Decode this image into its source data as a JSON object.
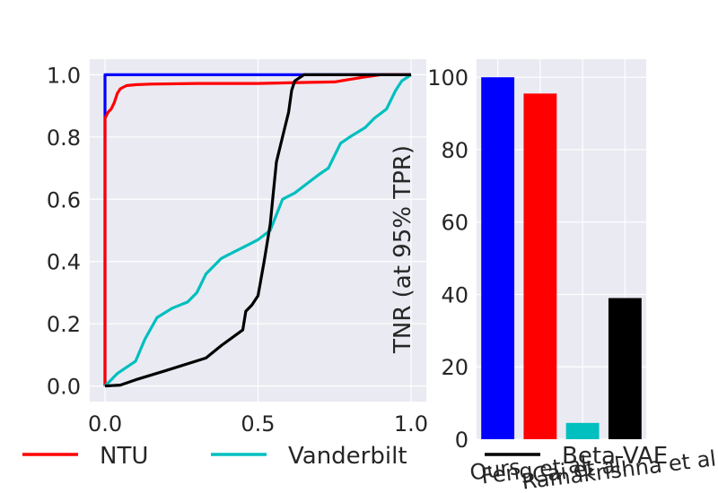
{
  "chart_data": [
    {
      "type": "line",
      "xlim": [
        -0.05,
        1.05
      ],
      "ylim": [
        -0.05,
        1.05
      ],
      "xticks": [
        "0.0",
        "0.5",
        "1.0"
      ],
      "xtick_values": [
        0.0,
        0.5,
        1.0
      ],
      "yticks": [
        "0.0",
        "0.2",
        "0.4",
        "0.6",
        "0.8",
        "1.0"
      ],
      "ytick_values": [
        0.0,
        0.2,
        0.4,
        0.6,
        0.8,
        1.0
      ],
      "grid": true,
      "legend_position": "bottom-left",
      "series": [
        {
          "color": "#0000ff",
          "points": [
            [
              0,
              0
            ],
            [
              0,
              1
            ],
            [
              0.5,
              1
            ],
            [
              1,
              1
            ]
          ]
        },
        {
          "name": "NTU",
          "color": "#ff0000",
          "points": [
            [
              0,
              0
            ],
            [
              0,
              0.86
            ],
            [
              0.01,
              0.88
            ],
            [
              0.02,
              0.89
            ],
            [
              0.03,
              0.91
            ],
            [
              0.04,
              0.94
            ],
            [
              0.05,
              0.955
            ],
            [
              0.07,
              0.965
            ],
            [
              0.1,
              0.968
            ],
            [
              0.15,
              0.97
            ],
            [
              0.3,
              0.972
            ],
            [
              0.5,
              0.972
            ],
            [
              0.65,
              0.975
            ],
            [
              0.75,
              0.977
            ],
            [
              0.8,
              0.985
            ],
            [
              0.85,
              0.993
            ],
            [
              0.9,
              1
            ],
            [
              1,
              1
            ]
          ]
        },
        {
          "name": "Vanderbilt",
          "color": "#00bfbf",
          "points": [
            [
              0,
              0
            ],
            [
              0.02,
              0.02
            ],
            [
              0.04,
              0.04
            ],
            [
              0.07,
              0.06
            ],
            [
              0.1,
              0.08
            ],
            [
              0.13,
              0.15
            ],
            [
              0.17,
              0.22
            ],
            [
              0.22,
              0.25
            ],
            [
              0.27,
              0.27
            ],
            [
              0.3,
              0.3
            ],
            [
              0.33,
              0.36
            ],
            [
              0.38,
              0.41
            ],
            [
              0.42,
              0.43
            ],
            [
              0.46,
              0.45
            ],
            [
              0.5,
              0.47
            ],
            [
              0.54,
              0.5
            ],
            [
              0.58,
              0.6
            ],
            [
              0.62,
              0.62
            ],
            [
              0.66,
              0.65
            ],
            [
              0.7,
              0.68
            ],
            [
              0.73,
              0.7
            ],
            [
              0.77,
              0.78
            ],
            [
              0.8,
              0.8
            ],
            [
              0.85,
              0.83
            ],
            [
              0.88,
              0.86
            ],
            [
              0.92,
              0.89
            ],
            [
              0.95,
              0.95
            ],
            [
              0.97,
              0.98
            ],
            [
              1,
              1
            ]
          ]
        },
        {
          "name": "Beta-VAE",
          "color": "#000000",
          "points": [
            [
              0,
              0
            ],
            [
              0.05,
              0.003
            ],
            [
              0.1,
              0.02
            ],
            [
              0.2,
              0.05
            ],
            [
              0.33,
              0.09
            ],
            [
              0.38,
              0.13
            ],
            [
              0.45,
              0.18
            ],
            [
              0.46,
              0.24
            ],
            [
              0.48,
              0.26
            ],
            [
              0.5,
              0.29
            ],
            [
              0.52,
              0.4
            ],
            [
              0.54,
              0.52
            ],
            [
              0.55,
              0.62
            ],
            [
              0.56,
              0.72
            ],
            [
              0.58,
              0.8
            ],
            [
              0.6,
              0.88
            ],
            [
              0.61,
              0.95
            ],
            [
              0.62,
              0.98
            ],
            [
              0.65,
              1
            ],
            [
              0.8,
              1
            ],
            [
              1,
              1
            ]
          ]
        }
      ]
    },
    {
      "type": "bar",
      "categories": [
        "Ours",
        "Feng et al.",
        "Cai et al.",
        "Ramakrishna et al."
      ],
      "values": [
        100,
        95.5,
        4.5,
        39
      ],
      "colors": [
        "#0000ff",
        "#ff0000",
        "#00bfbf",
        "#000000"
      ],
      "ylabel": "TNR (at 95% TPR)",
      "ylim": [
        0,
        105
      ],
      "yticks": [
        "0",
        "20",
        "40",
        "60",
        "80",
        "100"
      ],
      "ytick_values": [
        0,
        20,
        40,
        60,
        80,
        100
      ],
      "grid": true
    }
  ]
}
